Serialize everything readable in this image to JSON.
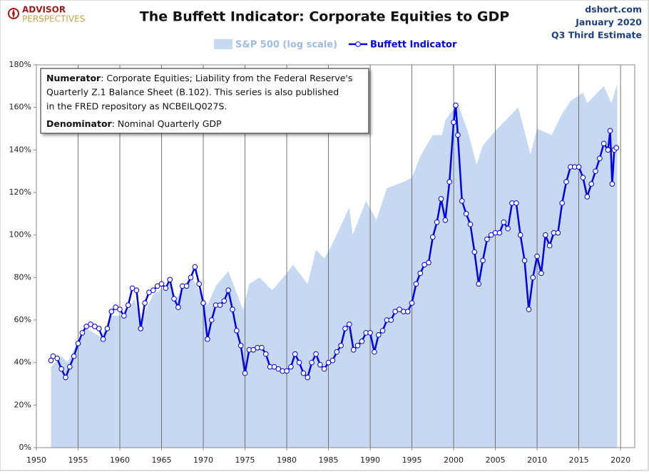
{
  "logo": {
    "line1": "ADVISOR",
    "line2": "PERSPECTIVES"
  },
  "source": {
    "site": "dshort.com",
    "date": "January 2020",
    "estimate": "Q3 Third Estimate"
  },
  "chart_data": {
    "type": "line",
    "title": "The Buffett Indicator: Corporate Equities to GDP",
    "annotation": {
      "numerator_label": "Numerator",
      "numerator_lines": [
        ": Corporate Equities; Liability from the Federal Reserve's",
        "Quarterly Z.1 Balance Sheet (B.102). This series is also published",
        "in the FRED repository  as NCBEILQ027S."
      ],
      "denominator_label": "Denominator",
      "denominator_text": ": Nominal Quarterly GDP"
    },
    "xlim": [
      1950,
      2021.7
    ],
    "xticks": [
      1950,
      1955,
      1960,
      1965,
      1970,
      1975,
      1980,
      1985,
      1990,
      1995,
      2000,
      2005,
      2010,
      2015,
      2020
    ],
    "ylim": [
      0,
      180
    ],
    "yticks": [
      {
        "value": 0,
        "label": "0%"
      },
      {
        "value": 20,
        "label": "20%"
      },
      {
        "value": 40,
        "label": "40%"
      },
      {
        "value": 60,
        "label": "60%"
      },
      {
        "value": 80,
        "label": "80%"
      },
      {
        "value": 100,
        "label": "100%"
      },
      {
        "value": 120,
        "label": "120%"
      },
      {
        "value": 140,
        "label": "140%"
      },
      {
        "value": 160,
        "label": "160%"
      },
      {
        "value": 180,
        "label": "180%"
      }
    ],
    "grid": "x",
    "series": [
      {
        "name": "S&P 500 (log scale)",
        "kind": "area",
        "color": "#c6d9f1",
        "x": [
          1951.75,
          1953,
          1953.75,
          1955,
          1956,
          1957.75,
          1959,
          1960.5,
          1961.75,
          1962.5,
          1964,
          1966,
          1966.75,
          1968.5,
          1970.5,
          1971.5,
          1973,
          1974.75,
          1975.5,
          1976.75,
          1978.25,
          1980,
          1980.75,
          1982.5,
          1983.5,
          1984.5,
          1985.5,
          1987.5,
          1987.9,
          1989.5,
          1990.75,
          1992,
          1994,
          1995,
          1996,
          1997.5,
          1998.6,
          1999,
          2000.5,
          2001.75,
          2002.75,
          2003.5,
          2005,
          2007.75,
          2009.2,
          2010,
          2011.75,
          2013,
          2014,
          2015.5,
          2016,
          2017,
          2018,
          2018.9,
          2019.6
        ],
        "values": [
          38,
          43,
          40,
          50,
          56,
          52,
          62,
          62,
          70,
          60,
          72,
          77,
          70,
          81,
          67,
          76,
          83,
          65,
          77,
          80,
          74,
          82,
          86,
          77,
          93,
          89,
          96,
          113,
          100,
          116,
          107,
          122,
          125,
          127,
          137,
          147,
          147,
          154,
          162,
          148,
          133,
          142,
          149,
          160,
          138,
          150,
          147,
          157,
          163,
          167,
          162,
          166,
          170,
          162,
          171
        ]
      },
      {
        "name": "Buffett Indicator",
        "kind": "line",
        "color": "#0000e6",
        "x": [
          1951.75,
          1952,
          1952.5,
          1953,
          1953.5,
          1954,
          1954.5,
          1955,
          1955.5,
          1956,
          1956.5,
          1957,
          1957.5,
          1958,
          1958.5,
          1959,
          1959.5,
          1960,
          1960.5,
          1961,
          1961.5,
          1962,
          1962.5,
          1963,
          1963.5,
          1964,
          1964.5,
          1965,
          1965.5,
          1966,
          1966.5,
          1967,
          1967.5,
          1968,
          1968.5,
          1969,
          1969.5,
          1970,
          1970.5,
          1971,
          1971.5,
          1972,
          1972.5,
          1973,
          1973.5,
          1974,
          1974.5,
          1975,
          1975.5,
          1976,
          1976.5,
          1977,
          1977.5,
          1978,
          1978.5,
          1979,
          1979.5,
          1980,
          1980.5,
          1981,
          1981.5,
          1982,
          1982.5,
          1983,
          1983.5,
          1984,
          1984.5,
          1985,
          1985.5,
          1986,
          1986.5,
          1987,
          1987.5,
          1988,
          1988.5,
          1989,
          1989.5,
          1990,
          1990.5,
          1991,
          1991.5,
          1992,
          1992.5,
          1993,
          1993.5,
          1994,
          1994.5,
          1995,
          1995.5,
          1996,
          1996.5,
          1997,
          1997.5,
          1998,
          1998.5,
          1999,
          1999.5,
          2000,
          2000.25,
          2000.5,
          2001,
          2001.5,
          2002,
          2002.5,
          2003,
          2003.5,
          2004,
          2004.5,
          2005,
          2005.5,
          2006,
          2006.5,
          2007,
          2007.5,
          2008,
          2008.5,
          2009,
          2009.5,
          2010,
          2010.5,
          2011,
          2011.5,
          2012,
          2012.5,
          2013,
          2013.5,
          2014,
          2014.5,
          2015,
          2015.5,
          2016,
          2016.5,
          2017,
          2017.5,
          2018,
          2018.5,
          2018.75,
          2019,
          2019.25,
          2019.5
        ],
        "values": [
          41,
          43,
          42,
          37,
          33,
          38,
          43,
          49,
          54,
          57,
          58,
          57,
          56,
          51,
          56,
          64,
          66,
          65,
          62,
          67,
          75,
          74,
          56,
          68,
          73,
          74,
          76,
          77,
          75,
          79,
          70,
          66,
          76,
          76,
          80,
          85,
          77,
          68,
          51,
          60,
          67,
          67,
          69,
          74,
          65,
          55,
          48,
          35,
          46,
          46,
          47,
          47,
          44,
          38,
          38,
          37,
          36,
          36,
          38,
          44,
          40,
          35,
          33,
          40,
          44,
          39,
          37,
          40,
          41,
          45,
          48,
          56,
          58,
          46,
          48,
          50,
          54,
          54,
          45,
          53,
          55,
          60,
          60,
          64,
          65,
          64,
          64,
          68,
          77,
          82,
          86,
          87,
          99,
          106,
          117,
          107,
          125,
          153,
          161,
          147,
          116,
          110,
          105,
          92,
          77,
          88,
          98,
          100,
          101,
          101,
          106,
          103,
          115,
          115,
          100,
          88,
          65,
          80,
          90,
          82,
          100,
          95,
          101,
          101,
          115,
          125,
          132,
          132,
          132,
          127,
          118,
          124,
          130,
          136,
          143,
          140,
          149,
          124,
          140,
          141
        ]
      }
    ]
  }
}
